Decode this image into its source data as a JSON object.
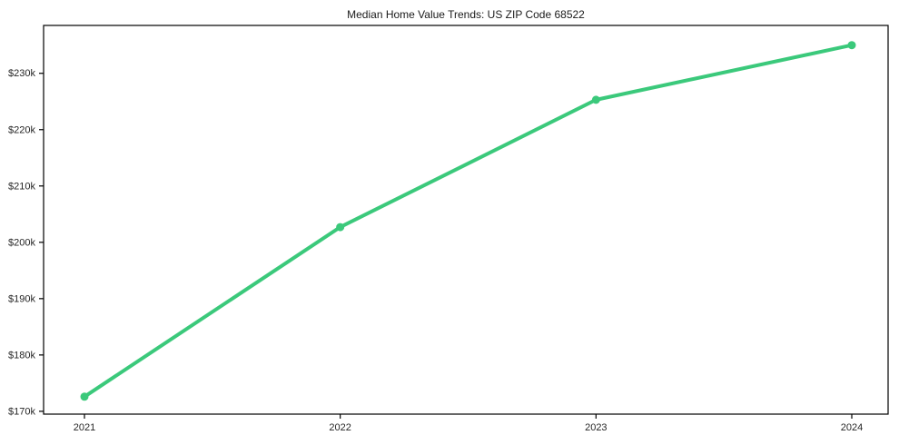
{
  "page": {
    "background_color": "#ffffff"
  },
  "chart_data": {
    "type": "line",
    "title": "Median Home Value Trends: US ZIP Code 68522",
    "xlabel": "",
    "ylabel": "",
    "categories": [
      "2021",
      "2022",
      "2023",
      "2024"
    ],
    "series": [
      {
        "name": "Median Home Value",
        "values": [
          172600,
          202700,
          225300,
          235000
        ],
        "color": "#3bc97b",
        "marker": "circle",
        "line_width": 4,
        "marker_radius": 4.5
      }
    ],
    "ylim": [
      169500,
      238500
    ],
    "yticks": {
      "values": [
        170000,
        180000,
        190000,
        200000,
        210000,
        220000,
        230000
      ],
      "labels": [
        "$170k",
        "$180k",
        "$190k",
        "$200k",
        "$210k",
        "$220k",
        "$230k"
      ]
    },
    "grid": false,
    "legend": "none",
    "colors": {
      "line": "#3bc97b",
      "spine": "#000000",
      "tick_label": "#262626",
      "title": "#1a1a1a",
      "plot_background": "#ffffff"
    }
  }
}
